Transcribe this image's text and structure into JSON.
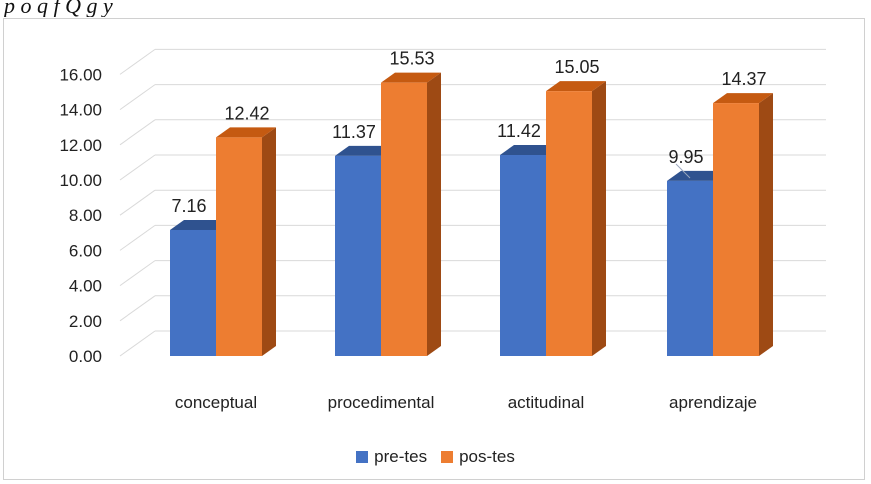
{
  "caption": "p        o  q   f         Q                        g       y",
  "colors": {
    "pre_front": "#4472c4",
    "pre_top": "#2f528f",
    "pre_side": "#2a4a86",
    "post_front": "#ed7d31",
    "post_top": "#c55a11",
    "post_side": "#9e4a14",
    "grid": "#d9d9d9",
    "text": "#222222"
  },
  "chart_data": {
    "type": "bar",
    "categories": [
      "conceptual",
      "procedimental",
      "actitudinal",
      "aprendizaje"
    ],
    "series": [
      {
        "name": "pre-tes",
        "values": [
          7.16,
          11.37,
          11.42,
          9.95
        ],
        "labels": [
          "7.16",
          "11.37",
          "11.42",
          "9.95"
        ]
      },
      {
        "name": "pos-tes",
        "values": [
          12.42,
          15.53,
          15.05,
          14.37
        ],
        "labels": [
          "12.42",
          "15.53",
          "15.05",
          "14.37"
        ]
      }
    ],
    "y_ticks": [
      "0.00",
      "2.00",
      "4.00",
      "6.00",
      "8.00",
      "10.00",
      "12.00",
      "14.00",
      "16.00"
    ],
    "ylim": [
      0,
      16
    ],
    "grid": true,
    "legend_position": "bottom",
    "three_d": true
  }
}
